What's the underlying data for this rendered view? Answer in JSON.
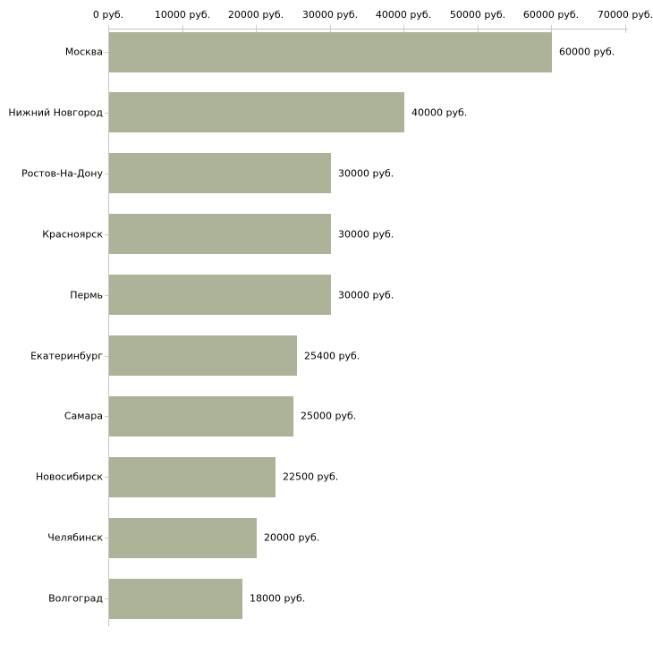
{
  "chart_data": {
    "type": "bar",
    "orientation": "horizontal",
    "categories": [
      "Москва",
      "Нижний Новгород",
      "Ростов-На-Дону",
      "Красноярск",
      "Пермь",
      "Екатеринбург",
      "Самара",
      "Новосибирск",
      "Челябинск",
      "Волгоград"
    ],
    "values": [
      60000,
      40000,
      30000,
      30000,
      30000,
      25400,
      25000,
      22500,
      20000,
      18000
    ],
    "value_labels": [
      "60000 руб.",
      "40000 руб.",
      "30000 руб.",
      "30000 руб.",
      "30000 руб.",
      "25400 руб.",
      "25000 руб.",
      "22500 руб.",
      "20000 руб.",
      "18000 руб."
    ],
    "unit": "руб.",
    "x_axis": {
      "position": "top",
      "min": 0,
      "max": 70000,
      "ticks": [
        0,
        10000,
        20000,
        30000,
        40000,
        50000,
        60000,
        70000
      ],
      "tick_labels": [
        "0 руб.",
        "10000 руб.",
        "20000 руб.",
        "30000 руб.",
        "40000 руб.",
        "50000 руб.",
        "60000 руб.",
        "70000 руб."
      ]
    },
    "grid": false,
    "legend": false,
    "colors": {
      "bar": "#adb399",
      "axis_line": "#c6c6c6",
      "tick_mark": "#cfcfad",
      "text": "#000000",
      "background": "#ffffff"
    }
  }
}
